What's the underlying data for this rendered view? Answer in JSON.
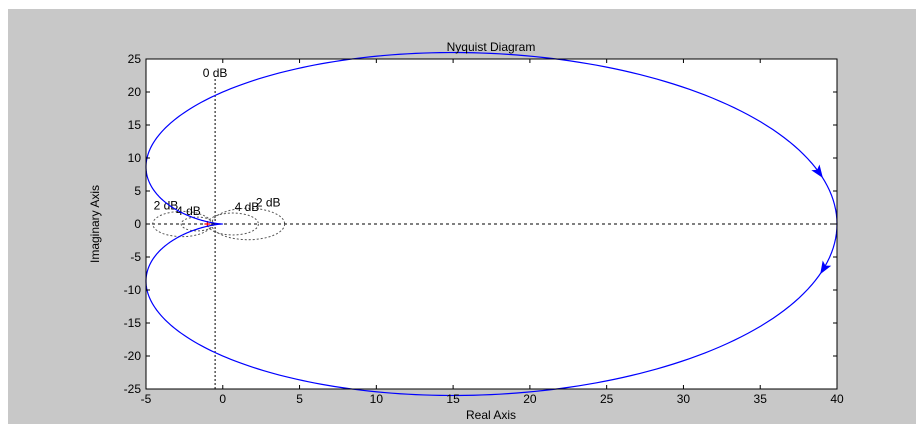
{
  "chart_data": {
    "type": "line",
    "title": "Nyquist Diagram",
    "xlabel": "Real Axis",
    "ylabel": "Imaginary Axis",
    "xlim": [
      -5,
      40
    ],
    "ylim": [
      -25,
      25
    ],
    "xticks": [
      -5,
      0,
      5,
      10,
      15,
      20,
      25,
      30,
      35,
      40
    ],
    "yticks": [
      -25,
      -20,
      -15,
      -10,
      -5,
      0,
      5,
      10,
      15,
      20,
      25
    ],
    "grid": true,
    "gain": 40,
    "critical_point": [
      -1,
      0
    ],
    "grid_labels": {
      "zero_db": "0 dB",
      "circles": [
        {
          "label": "2 dB",
          "side": "left",
          "center": [
            -2.65,
            0
          ],
          "radius": 1.91
        },
        {
          "label": "2 dB",
          "side": "right",
          "center": [
            1.65,
            0
          ],
          "radius": 2.38
        },
        {
          "label": "4 dB",
          "side": "left",
          "center": [
            -1.66,
            0
          ],
          "radius": 1.05
        },
        {
          "label": "4 dB",
          "side": "right",
          "center": [
            0.66,
            0
          ],
          "radius": 1.66
        }
      ]
    },
    "series": [
      {
        "color": "#0000ff",
        "arrows": true,
        "x": [
          40,
          39.92,
          39.68,
          39.29,
          38.75,
          38.08,
          37.3,
          35.47,
          33.41,
          31.25,
          29.08,
          27.03,
          23.36,
          20.31,
          17.87,
          15.94,
          13.09,
          11.11,
          8.56,
          6.25,
          4.35,
          2.65,
          1.41,
          0.59,
          0.06,
          -0.44,
          -0.76,
          -1.09,
          -1.22,
          -1.34,
          -1.39,
          -1.39,
          -1.34,
          -1.22,
          -1.09,
          -0.76,
          -0.44,
          0.06,
          0.59,
          1.41,
          2.65,
          4.35,
          6.25,
          8.56,
          11.11,
          13.09,
          15.94,
          17.87,
          20.31,
          23.36,
          27.03,
          29.08,
          31.25,
          33.41,
          35.47,
          37.3,
          38.08,
          38.75,
          39.29,
          39.68,
          39.92,
          40
        ],
        "y": [
          0,
          -2.0,
          -3.97,
          -5.89,
          -7.75,
          -9.52,
          -11.19,
          -14.19,
          -16.71,
          -18.75,
          -20.33,
          -21.49,
          -22.97,
          -23.62,
          -23.78,
          -23.64,
          -22.93,
          -21.99,
          -20.37,
          -18.22,
          -15.95,
          -13.19,
          -10.87,
          -8.79,
          -7.06,
          -5.1,
          -3.53,
          -1.91,
          -1.34,
          -0.77,
          -0.26,
          0.26,
          0.77,
          1.34,
          1.91,
          3.53,
          5.1,
          7.06,
          8.79,
          10.87,
          13.19,
          15.95,
          18.22,
          20.37,
          21.99,
          22.93,
          23.64,
          23.78,
          23.62,
          22.97,
          21.49,
          20.33,
          18.75,
          16.71,
          14.19,
          11.19,
          9.52,
          7.75,
          5.89,
          3.97,
          2.0,
          0
        ]
      }
    ]
  }
}
